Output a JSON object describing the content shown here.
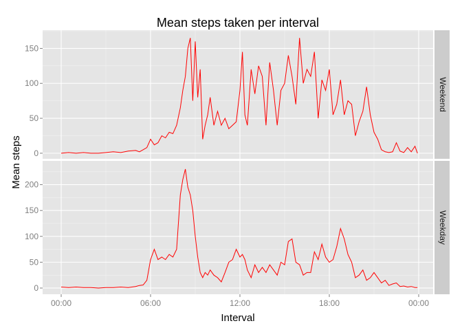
{
  "chart_data": {
    "type": "line",
    "title": "Mean steps taken per interval",
    "xlabel": "Interval",
    "ylabel": "Mean steps",
    "xlim": [
      "00:00",
      "24:00"
    ],
    "xticks": [
      "00:00",
      "06:00",
      "12:00",
      "18:00",
      "00:00"
    ],
    "grid": true,
    "line_color": "#ff0000",
    "panel_background": "#e5e5e5",
    "strip_background": "#cccccc",
    "panels": [
      {
        "name": "Weekend",
        "ylim": [
          -8,
          176
        ],
        "yticks": [
          0,
          50,
          100,
          150
        ],
        "x": [
          "00:00",
          "00:30",
          "01:00",
          "01:30",
          "02:00",
          "02:30",
          "03:00",
          "03:30",
          "04:00",
          "04:30",
          "05:00",
          "05:15",
          "05:30",
          "05:45",
          "06:00",
          "06:15",
          "06:30",
          "06:45",
          "07:00",
          "07:15",
          "07:30",
          "07:45",
          "08:00",
          "08:10",
          "08:20",
          "08:30",
          "08:40",
          "08:50",
          "09:00",
          "09:10",
          "09:20",
          "09:30",
          "09:40",
          "09:50",
          "10:00",
          "10:15",
          "10:30",
          "10:45",
          "11:00",
          "11:15",
          "11:30",
          "11:45",
          "12:00",
          "12:10",
          "12:20",
          "12:30",
          "12:45",
          "13:00",
          "13:15",
          "13:30",
          "13:45",
          "14:00",
          "14:15",
          "14:30",
          "14:45",
          "15:00",
          "15:15",
          "15:30",
          "15:45",
          "16:00",
          "16:15",
          "16:30",
          "16:45",
          "17:00",
          "17:15",
          "17:30",
          "17:45",
          "18:00",
          "18:15",
          "18:30",
          "18:45",
          "19:00",
          "19:15",
          "19:30",
          "19:45",
          "20:00",
          "20:15",
          "20:30",
          "20:45",
          "21:00",
          "21:15",
          "21:30",
          "21:45",
          "22:00",
          "22:15",
          "22:30",
          "22:45",
          "23:00",
          "23:15",
          "23:30",
          "23:45",
          "23:55"
        ],
        "y": [
          0,
          1,
          0,
          1,
          0,
          0,
          1,
          2,
          1,
          3,
          4,
          2,
          5,
          8,
          20,
          12,
          15,
          25,
          22,
          30,
          28,
          40,
          65,
          90,
          110,
          150,
          165,
          75,
          160,
          80,
          120,
          20,
          40,
          55,
          80,
          40,
          60,
          40,
          50,
          35,
          40,
          45,
          90,
          145,
          55,
          40,
          120,
          85,
          125,
          110,
          40,
          130,
          90,
          40,
          90,
          100,
          140,
          110,
          70,
          165,
          100,
          120,
          110,
          145,
          50,
          105,
          90,
          120,
          55,
          70,
          105,
          55,
          75,
          70,
          25,
          45,
          60,
          95,
          55,
          30,
          20,
          5,
          2,
          1,
          2,
          15,
          3,
          1,
          8,
          2,
          10,
          0
        ],
        "y_note": "estimated from gridlines"
      },
      {
        "name": "Weekday",
        "ylim": [
          -12,
          246
        ],
        "yticks": [
          0,
          50,
          100,
          150,
          200
        ],
        "x": [
          "00:00",
          "00:30",
          "01:00",
          "01:30",
          "02:00",
          "02:30",
          "03:00",
          "03:30",
          "04:00",
          "04:30",
          "05:00",
          "05:15",
          "05:30",
          "05:45",
          "06:00",
          "06:15",
          "06:30",
          "06:45",
          "07:00",
          "07:15",
          "07:30",
          "07:45",
          "08:00",
          "08:10",
          "08:20",
          "08:30",
          "08:40",
          "08:50",
          "09:00",
          "09:10",
          "09:20",
          "09:30",
          "09:40",
          "09:50",
          "10:00",
          "10:15",
          "10:30",
          "10:45",
          "11:00",
          "11:15",
          "11:30",
          "11:45",
          "12:00",
          "12:10",
          "12:20",
          "12:30",
          "12:45",
          "13:00",
          "13:15",
          "13:30",
          "13:45",
          "14:00",
          "14:15",
          "14:30",
          "14:45",
          "15:00",
          "15:15",
          "15:30",
          "15:45",
          "16:00",
          "16:15",
          "16:30",
          "16:45",
          "17:00",
          "17:15",
          "17:30",
          "17:45",
          "18:00",
          "18:15",
          "18:30",
          "18:45",
          "19:00",
          "19:15",
          "19:30",
          "19:45",
          "20:00",
          "20:15",
          "20:30",
          "20:45",
          "21:00",
          "21:15",
          "21:30",
          "21:45",
          "22:00",
          "22:15",
          "22:30",
          "22:45",
          "23:00",
          "23:15",
          "23:30",
          "23:45",
          "23:55"
        ],
        "y": [
          2,
          1,
          2,
          1,
          1,
          0,
          1,
          1,
          2,
          1,
          3,
          5,
          6,
          15,
          55,
          75,
          55,
          60,
          55,
          65,
          60,
          75,
          180,
          210,
          230,
          195,
          180,
          150,
          100,
          60,
          30,
          20,
          30,
          25,
          35,
          25,
          20,
          12,
          30,
          50,
          55,
          75,
          60,
          65,
          55,
          35,
          20,
          45,
          30,
          40,
          30,
          45,
          35,
          25,
          50,
          45,
          90,
          95,
          50,
          45,
          25,
          30,
          30,
          70,
          55,
          85,
          60,
          50,
          55,
          80,
          115,
          95,
          65,
          50,
          20,
          25,
          35,
          15,
          20,
          30,
          20,
          10,
          15,
          5,
          8,
          10,
          3,
          4,
          2,
          3,
          1,
          1
        ],
        "y_note": "estimated from gridlines"
      }
    ]
  }
}
